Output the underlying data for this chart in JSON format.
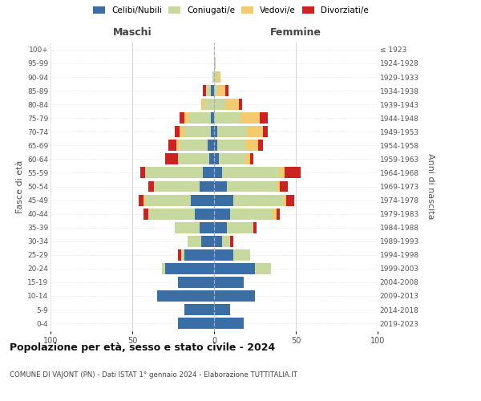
{
  "age_groups": [
    "0-4",
    "5-9",
    "10-14",
    "15-19",
    "20-24",
    "25-29",
    "30-34",
    "35-39",
    "40-44",
    "45-49",
    "50-54",
    "55-59",
    "60-64",
    "65-69",
    "70-74",
    "75-79",
    "80-84",
    "85-89",
    "90-94",
    "95-99",
    "100+"
  ],
  "birth_years": [
    "2019-2023",
    "2014-2018",
    "2009-2013",
    "2004-2008",
    "1999-2003",
    "1994-1998",
    "1989-1993",
    "1984-1988",
    "1979-1983",
    "1974-1978",
    "1969-1973",
    "1964-1968",
    "1959-1963",
    "1954-1958",
    "1949-1953",
    "1944-1948",
    "1939-1943",
    "1934-1938",
    "1929-1933",
    "1924-1928",
    "≤ 1923"
  ],
  "colors": {
    "celibi": "#3b6ea5",
    "coniugati": "#c8d9a0",
    "vedovi": "#f5c96e",
    "divorziati": "#cc2222"
  },
  "maschi": {
    "celibi": [
      22,
      18,
      35,
      22,
      30,
      18,
      8,
      9,
      12,
      14,
      9,
      7,
      3,
      4,
      2,
      2,
      0,
      2,
      0,
      0,
      0
    ],
    "coniugati": [
      0,
      0,
      0,
      0,
      2,
      2,
      8,
      15,
      28,
      28,
      28,
      35,
      19,
      17,
      16,
      13,
      6,
      3,
      1,
      0,
      0
    ],
    "vedovi": [
      0,
      0,
      0,
      0,
      0,
      0,
      0,
      0,
      0,
      1,
      0,
      0,
      0,
      2,
      3,
      3,
      2,
      0,
      0,
      0,
      0
    ],
    "divorziati": [
      0,
      0,
      0,
      0,
      0,
      2,
      0,
      0,
      3,
      3,
      3,
      3,
      8,
      5,
      3,
      3,
      0,
      2,
      0,
      0,
      0
    ]
  },
  "femmine": {
    "celibi": [
      18,
      10,
      25,
      18,
      25,
      12,
      5,
      8,
      10,
      12,
      8,
      5,
      3,
      2,
      2,
      0,
      0,
      0,
      0,
      0,
      0
    ],
    "coniugati": [
      0,
      0,
      0,
      0,
      10,
      10,
      5,
      16,
      26,
      30,
      30,
      35,
      16,
      17,
      18,
      16,
      7,
      2,
      2,
      1,
      0
    ],
    "vedovi": [
      0,
      0,
      0,
      0,
      0,
      0,
      0,
      0,
      2,
      2,
      2,
      3,
      3,
      8,
      10,
      12,
      8,
      5,
      2,
      0,
      0
    ],
    "divorziati": [
      0,
      0,
      0,
      0,
      0,
      0,
      2,
      2,
      2,
      5,
      5,
      10,
      2,
      3,
      3,
      5,
      2,
      2,
      0,
      0,
      0
    ]
  },
  "xlim": 100,
  "title": "Popolazione per età, sesso e stato civile - 2024",
  "subtitle": "COMUNE DI VAJONT (PN) - Dati ISTAT 1° gennaio 2024 - Elaborazione TUTTITALIA.IT",
  "ylabel_left": "Fasce di età",
  "ylabel_right": "Anni di nascita",
  "xlabel_left": "Maschi",
  "xlabel_right": "Femmine",
  "legend_labels": [
    "Celibi/Nubili",
    "Coniugati/e",
    "Vedovi/e",
    "Divorziati/e"
  ],
  "background_color": "#ffffff",
  "grid_color": "#cccccc"
}
